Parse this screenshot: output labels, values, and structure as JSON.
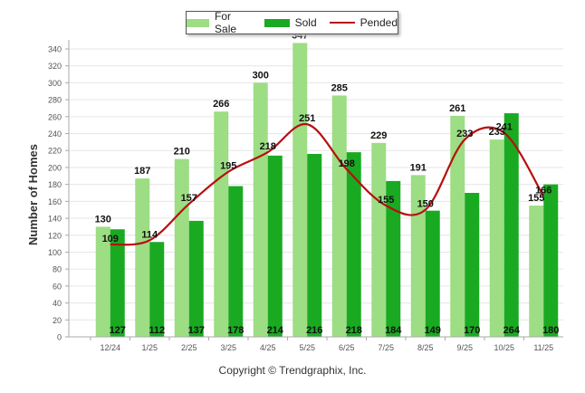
{
  "chart_data": {
    "type": "bar",
    "title": "",
    "xlabel": "",
    "ylabel": "Number of Homes",
    "ylim": [
      0,
      340
    ],
    "yticks": [
      0,
      20,
      40,
      60,
      80,
      100,
      120,
      140,
      160,
      180,
      200,
      220,
      240,
      260,
      280,
      300,
      320,
      340
    ],
    "categories": [
      "12/24",
      "1/25",
      "2/25",
      "3/25",
      "4/25",
      "5/25",
      "6/25",
      "7/25",
      "8/25",
      "9/25",
      "10/25",
      "11/25"
    ],
    "series": [
      {
        "name": "For Sale",
        "kind": "bar",
        "color": "#9ddd84",
        "values": [
          130,
          187,
          210,
          266,
          300,
          347,
          285,
          229,
          191,
          261,
          233,
          155
        ]
      },
      {
        "name": "Sold",
        "kind": "bar",
        "color": "#1aaa22",
        "values": [
          127,
          112,
          137,
          178,
          214,
          216,
          218,
          184,
          149,
          170,
          264,
          180
        ]
      },
      {
        "name": "Pended",
        "kind": "line",
        "color": "#b80f0f",
        "values": [
          109,
          114,
          157,
          195,
          218,
          251,
          198,
          155,
          150,
          233,
          241,
          166
        ]
      }
    ],
    "legend_position": "top-center",
    "grid": true
  },
  "legend": {
    "for_sale": "For Sale",
    "sold": "Sold",
    "pended": "Pended"
  },
  "footer": "Copyright © Trendgraphix, Inc."
}
